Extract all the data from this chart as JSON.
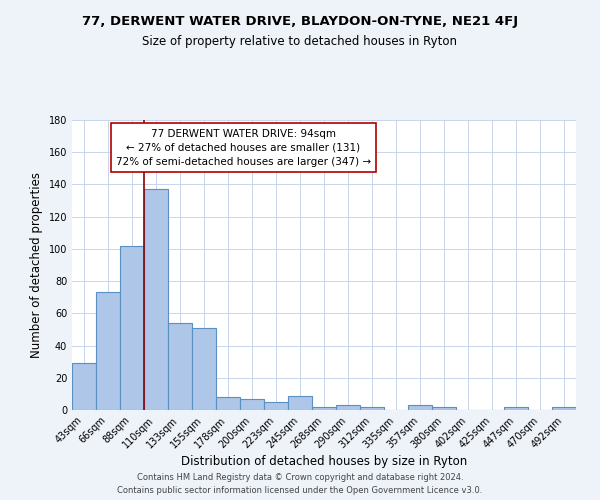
{
  "title": "77, DERWENT WATER DRIVE, BLAYDON-ON-TYNE, NE21 4FJ",
  "subtitle": "Size of property relative to detached houses in Ryton",
  "xlabel": "Distribution of detached houses by size in Ryton",
  "ylabel": "Number of detached properties",
  "bar_labels": [
    "43sqm",
    "66sqm",
    "88sqm",
    "110sqm",
    "133sqm",
    "155sqm",
    "178sqm",
    "200sqm",
    "223sqm",
    "245sqm",
    "268sqm",
    "290sqm",
    "312sqm",
    "335sqm",
    "357sqm",
    "380sqm",
    "402sqm",
    "425sqm",
    "447sqm",
    "470sqm",
    "492sqm"
  ],
  "bar_heights": [
    29,
    73,
    102,
    137,
    54,
    51,
    8,
    7,
    5,
    9,
    2,
    3,
    2,
    0,
    3,
    2,
    0,
    0,
    2,
    0,
    2
  ],
  "bar_color": "#aec6e8",
  "bar_edge_color": "#5a8fc2",
  "red_line_x": 2.5,
  "ylim": [
    0,
    180
  ],
  "yticks": [
    0,
    20,
    40,
    60,
    80,
    100,
    120,
    140,
    160,
    180
  ],
  "annotation_title": "77 DERWENT WATER DRIVE: 94sqm",
  "annotation_line1": "← 27% of detached houses are smaller (131)",
  "annotation_line2": "72% of semi-detached houses are larger (347) →",
  "footer_line1": "Contains HM Land Registry data © Crown copyright and database right 2024.",
  "footer_line2": "Contains public sector information licensed under the Open Government Licence v3.0.",
  "background_color": "#eef2f9",
  "plot_bg_color": "#ffffff",
  "grid_color": "#c8d4e8",
  "title_fontsize": 9.5,
  "subtitle_fontsize": 8.5,
  "axis_label_fontsize": 8.5,
  "tick_fontsize": 7.0,
  "annotation_fontsize": 7.5,
  "footer_fontsize": 6.0
}
